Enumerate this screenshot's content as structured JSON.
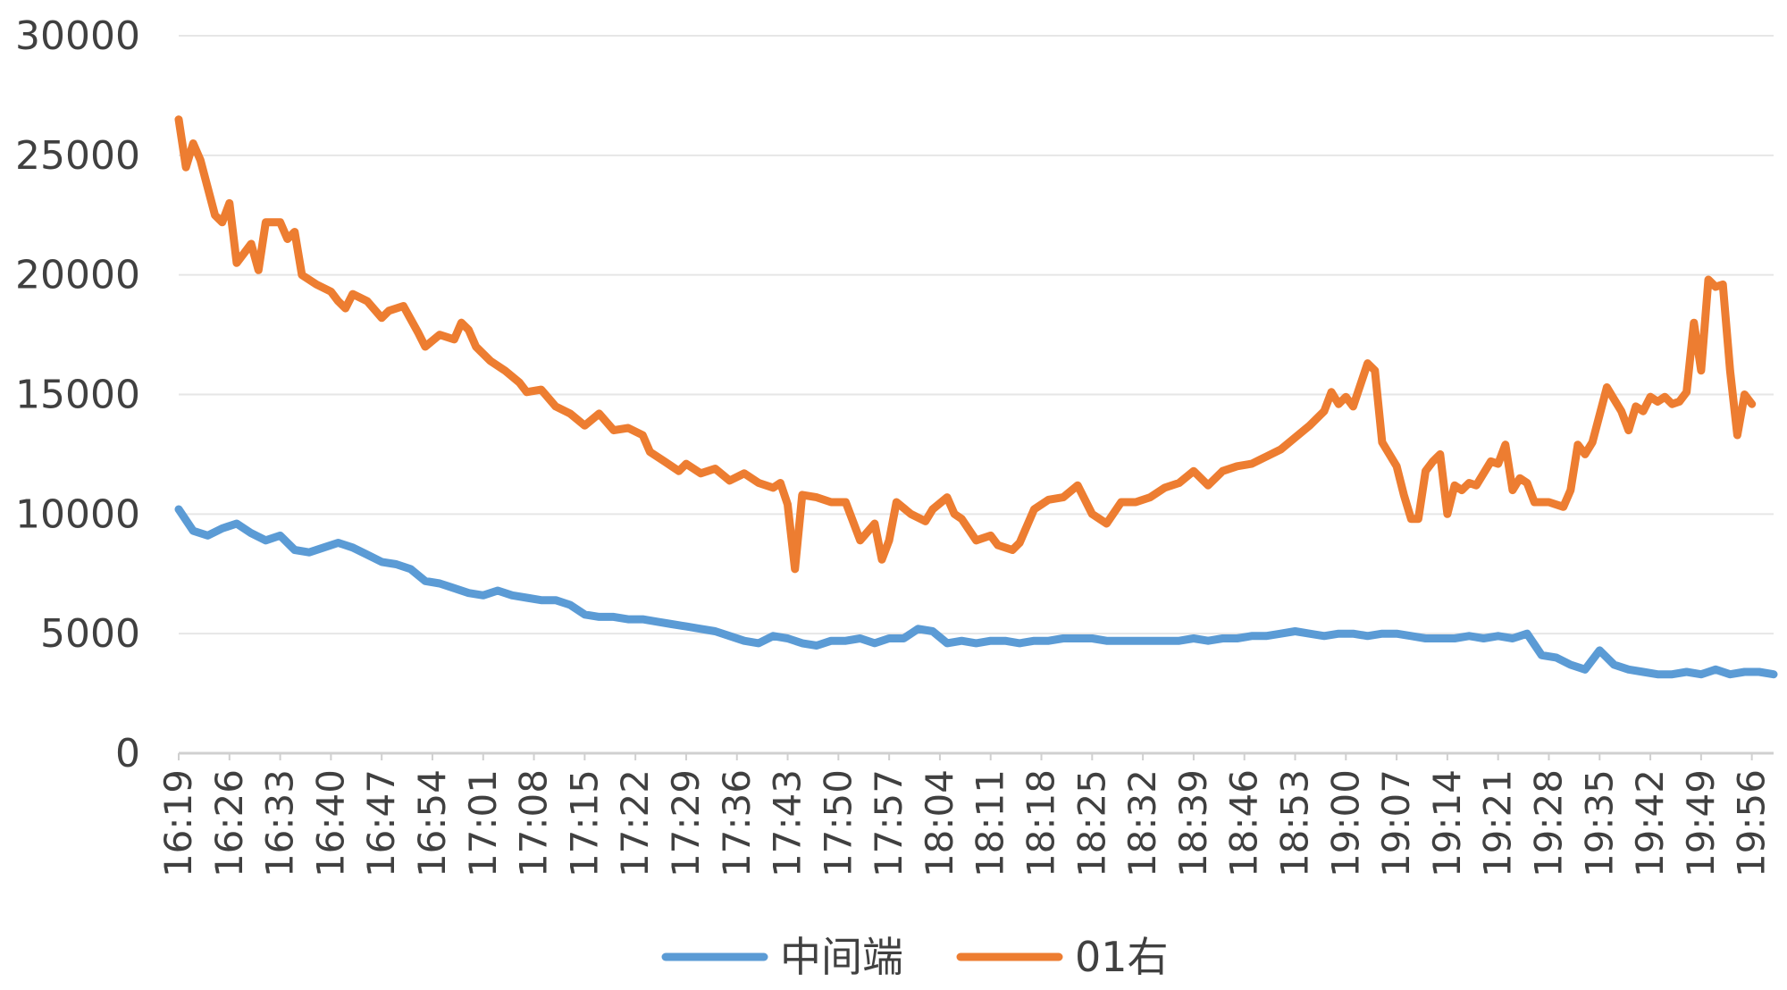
{
  "chart_data": {
    "type": "line",
    "title": "",
    "xlabel": "",
    "ylabel": "",
    "ylim": [
      0,
      30000
    ],
    "yticks": [
      0,
      5000,
      10000,
      15000,
      20000,
      25000,
      30000
    ],
    "ytick_labels": [
      "0",
      "5000",
      "10000",
      "15000",
      "20000",
      "25000",
      "30000"
    ],
    "grid": "horizontal",
    "legend_position": "bottom",
    "x_range": [
      "16:19",
      "19:59"
    ],
    "xtick_labels": [
      "16:19",
      "16:26",
      "16:33",
      "16:40",
      "16:47",
      "16:54",
      "17:01",
      "17:08",
      "17:15",
      "17:22",
      "17:29",
      "17:36",
      "17:43",
      "17:50",
      "17:57",
      "18:04",
      "18:11",
      "18:18",
      "18:25",
      "18:32",
      "18:39",
      "18:46",
      "18:53",
      "19:00",
      "19:07",
      "19:14",
      "19:21",
      "19:28",
      "19:35",
      "19:42",
      "19:49",
      "19:56"
    ],
    "series": [
      {
        "name": "中间端",
        "color": "#5B9BD5",
        "points": [
          [
            "16:19",
            10200
          ],
          [
            "16:21",
            9300
          ],
          [
            "16:23",
            9100
          ],
          [
            "16:25",
            9400
          ],
          [
            "16:27",
            9600
          ],
          [
            "16:29",
            9200
          ],
          [
            "16:31",
            8900
          ],
          [
            "16:33",
            9100
          ],
          [
            "16:35",
            8500
          ],
          [
            "16:37",
            8400
          ],
          [
            "16:39",
            8600
          ],
          [
            "16:41",
            8800
          ],
          [
            "16:43",
            8600
          ],
          [
            "16:45",
            8300
          ],
          [
            "16:47",
            8000
          ],
          [
            "16:49",
            7900
          ],
          [
            "16:51",
            7700
          ],
          [
            "16:53",
            7200
          ],
          [
            "16:55",
            7100
          ],
          [
            "16:57",
            6900
          ],
          [
            "16:59",
            6700
          ],
          [
            "17:01",
            6600
          ],
          [
            "17:03",
            6800
          ],
          [
            "17:05",
            6600
          ],
          [
            "17:07",
            6500
          ],
          [
            "17:09",
            6400
          ],
          [
            "17:11",
            6400
          ],
          [
            "17:13",
            6200
          ],
          [
            "17:15",
            5800
          ],
          [
            "17:17",
            5700
          ],
          [
            "17:19",
            5700
          ],
          [
            "17:21",
            5600
          ],
          [
            "17:23",
            5600
          ],
          [
            "17:25",
            5500
          ],
          [
            "17:27",
            5400
          ],
          [
            "17:29",
            5300
          ],
          [
            "17:31",
            5200
          ],
          [
            "17:33",
            5100
          ],
          [
            "17:35",
            4900
          ],
          [
            "17:37",
            4700
          ],
          [
            "17:39",
            4600
          ],
          [
            "17:41",
            4900
          ],
          [
            "17:43",
            4800
          ],
          [
            "17:45",
            4600
          ],
          [
            "17:47",
            4500
          ],
          [
            "17:49",
            4700
          ],
          [
            "17:51",
            4700
          ],
          [
            "17:53",
            4800
          ],
          [
            "17:55",
            4600
          ],
          [
            "17:57",
            4800
          ],
          [
            "17:59",
            4800
          ],
          [
            "18:01",
            5200
          ],
          [
            "18:03",
            5100
          ],
          [
            "18:05",
            4600
          ],
          [
            "18:07",
            4700
          ],
          [
            "18:09",
            4600
          ],
          [
            "18:11",
            4700
          ],
          [
            "18:13",
            4700
          ],
          [
            "18:15",
            4600
          ],
          [
            "18:17",
            4700
          ],
          [
            "18:19",
            4700
          ],
          [
            "18:21",
            4800
          ],
          [
            "18:23",
            4800
          ],
          [
            "18:25",
            4800
          ],
          [
            "18:27",
            4700
          ],
          [
            "18:29",
            4700
          ],
          [
            "18:31",
            4700
          ],
          [
            "18:33",
            4700
          ],
          [
            "18:35",
            4700
          ],
          [
            "18:37",
            4700
          ],
          [
            "18:39",
            4800
          ],
          [
            "18:41",
            4700
          ],
          [
            "18:43",
            4800
          ],
          [
            "18:45",
            4800
          ],
          [
            "18:47",
            4900
          ],
          [
            "18:49",
            4900
          ],
          [
            "18:51",
            5000
          ],
          [
            "18:53",
            5100
          ],
          [
            "18:55",
            5000
          ],
          [
            "18:57",
            4900
          ],
          [
            "18:59",
            5000
          ],
          [
            "19:01",
            5000
          ],
          [
            "19:03",
            4900
          ],
          [
            "19:05",
            5000
          ],
          [
            "19:07",
            5000
          ],
          [
            "19:09",
            4900
          ],
          [
            "19:11",
            4800
          ],
          [
            "19:13",
            4800
          ],
          [
            "19:15",
            4800
          ],
          [
            "19:17",
            4900
          ],
          [
            "19:19",
            4800
          ],
          [
            "19:21",
            4900
          ],
          [
            "19:23",
            4800
          ],
          [
            "19:25",
            5000
          ],
          [
            "19:27",
            4100
          ],
          [
            "19:29",
            4000
          ],
          [
            "19:31",
            3700
          ],
          [
            "19:33",
            3500
          ],
          [
            "19:35",
            4300
          ],
          [
            "19:37",
            3700
          ],
          [
            "19:39",
            3500
          ],
          [
            "19:41",
            3400
          ],
          [
            "19:43",
            3300
          ],
          [
            "19:45",
            3300
          ],
          [
            "19:47",
            3400
          ],
          [
            "19:49",
            3300
          ],
          [
            "19:51",
            3500
          ],
          [
            "19:53",
            3300
          ],
          [
            "19:55",
            3400
          ],
          [
            "19:57",
            3400
          ],
          [
            "19:59",
            3300
          ]
        ]
      },
      {
        "name": "01右",
        "color": "#ED7D31",
        "points": [
          [
            "16:19",
            26500
          ],
          [
            "16:20",
            24500
          ],
          [
            "16:21",
            25500
          ],
          [
            "16:22",
            24800
          ],
          [
            "16:24",
            22500
          ],
          [
            "16:25",
            22200
          ],
          [
            "16:26",
            23000
          ],
          [
            "16:27",
            20500
          ],
          [
            "16:29",
            21300
          ],
          [
            "16:30",
            20200
          ],
          [
            "16:31",
            22200
          ],
          [
            "16:33",
            22200
          ],
          [
            "16:34",
            21500
          ],
          [
            "16:35",
            21800
          ],
          [
            "16:36",
            20000
          ],
          [
            "16:38",
            19600
          ],
          [
            "16:40",
            19300
          ],
          [
            "16:41",
            18900
          ],
          [
            "16:42",
            18600
          ],
          [
            "16:43",
            19200
          ],
          [
            "16:45",
            18900
          ],
          [
            "16:47",
            18200
          ],
          [
            "16:48",
            18500
          ],
          [
            "16:50",
            18700
          ],
          [
            "16:52",
            17600
          ],
          [
            "16:53",
            17000
          ],
          [
            "16:55",
            17500
          ],
          [
            "16:57",
            17300
          ],
          [
            "16:58",
            18000
          ],
          [
            "16:59",
            17700
          ],
          [
            "17:00",
            17000
          ],
          [
            "17:02",
            16400
          ],
          [
            "17:04",
            16000
          ],
          [
            "17:06",
            15500
          ],
          [
            "17:07",
            15100
          ],
          [
            "17:09",
            15200
          ],
          [
            "17:11",
            14500
          ],
          [
            "17:13",
            14200
          ],
          [
            "17:15",
            13700
          ],
          [
            "17:17",
            14200
          ],
          [
            "17:19",
            13500
          ],
          [
            "17:21",
            13600
          ],
          [
            "17:23",
            13300
          ],
          [
            "17:24",
            12600
          ],
          [
            "17:26",
            12200
          ],
          [
            "17:28",
            11800
          ],
          [
            "17:29",
            12100
          ],
          [
            "17:31",
            11700
          ],
          [
            "17:33",
            11900
          ],
          [
            "17:35",
            11400
          ],
          [
            "17:37",
            11700
          ],
          [
            "17:39",
            11300
          ],
          [
            "17:41",
            11100
          ],
          [
            "17:42",
            11300
          ],
          [
            "17:43",
            10400
          ],
          [
            "17:44",
            7700
          ],
          [
            "17:45",
            10800
          ],
          [
            "17:47",
            10700
          ],
          [
            "17:49",
            10500
          ],
          [
            "17:51",
            10500
          ],
          [
            "17:53",
            8900
          ],
          [
            "17:55",
            9600
          ],
          [
            "17:56",
            8100
          ],
          [
            "17:57",
            8900
          ],
          [
            "17:58",
            10500
          ],
          [
            "18:00",
            10000
          ],
          [
            "18:02",
            9700
          ],
          [
            "18:03",
            10200
          ],
          [
            "18:05",
            10700
          ],
          [
            "18:06",
            10000
          ],
          [
            "18:07",
            9800
          ],
          [
            "18:09",
            8900
          ],
          [
            "18:11",
            9100
          ],
          [
            "18:12",
            8700
          ],
          [
            "18:14",
            8500
          ],
          [
            "18:15",
            8800
          ],
          [
            "18:17",
            10200
          ],
          [
            "18:19",
            10600
          ],
          [
            "18:21",
            10700
          ],
          [
            "18:23",
            11200
          ],
          [
            "18:25",
            10000
          ],
          [
            "18:27",
            9600
          ],
          [
            "18:29",
            10500
          ],
          [
            "18:31",
            10500
          ],
          [
            "18:33",
            10700
          ],
          [
            "18:35",
            11100
          ],
          [
            "18:37",
            11300
          ],
          [
            "18:39",
            11800
          ],
          [
            "18:41",
            11200
          ],
          [
            "18:43",
            11800
          ],
          [
            "18:45",
            12000
          ],
          [
            "18:47",
            12100
          ],
          [
            "18:49",
            12400
          ],
          [
            "18:51",
            12700
          ],
          [
            "18:53",
            13200
          ],
          [
            "18:55",
            13700
          ],
          [
            "18:57",
            14300
          ],
          [
            "18:58",
            15100
          ],
          [
            "18:59",
            14600
          ],
          [
            "19:00",
            14900
          ],
          [
            "19:01",
            14500
          ],
          [
            "19:03",
            16300
          ],
          [
            "19:04",
            16000
          ],
          [
            "19:05",
            13000
          ],
          [
            "19:07",
            12000
          ],
          [
            "19:08",
            10800
          ],
          [
            "19:09",
            9800
          ],
          [
            "19:10",
            9800
          ],
          [
            "19:11",
            11800
          ],
          [
            "19:12",
            12200
          ],
          [
            "19:13",
            12500
          ],
          [
            "19:14",
            10000
          ],
          [
            "19:15",
            11200
          ],
          [
            "19:16",
            11000
          ],
          [
            "19:17",
            11300
          ],
          [
            "19:18",
            11200
          ],
          [
            "19:20",
            12200
          ],
          [
            "19:21",
            12100
          ],
          [
            "19:22",
            12900
          ],
          [
            "19:23",
            11000
          ],
          [
            "19:24",
            11500
          ],
          [
            "19:25",
            11300
          ],
          [
            "19:26",
            10500
          ],
          [
            "19:28",
            10500
          ],
          [
            "19:30",
            10300
          ],
          [
            "19:31",
            11000
          ],
          [
            "19:32",
            12900
          ],
          [
            "19:33",
            12500
          ],
          [
            "19:34",
            13000
          ],
          [
            "19:36",
            15300
          ],
          [
            "19:37",
            14800
          ],
          [
            "19:38",
            14300
          ],
          [
            "19:39",
            13500
          ],
          [
            "19:40",
            14500
          ],
          [
            "19:41",
            14300
          ],
          [
            "19:42",
            14900
          ],
          [
            "19:43",
            14700
          ],
          [
            "19:44",
            14900
          ],
          [
            "19:45",
            14600
          ],
          [
            "19:46",
            14700
          ],
          [
            "19:47",
            15100
          ],
          [
            "19:48",
            18000
          ],
          [
            "19:49",
            16000
          ],
          [
            "19:50",
            19800
          ],
          [
            "19:51",
            19500
          ],
          [
            "19:52",
            19600
          ],
          [
            "19:53",
            16000
          ],
          [
            "19:54",
            13300
          ],
          [
            "19:55",
            15000
          ],
          [
            "19:56",
            14600
          ]
        ]
      }
    ]
  }
}
